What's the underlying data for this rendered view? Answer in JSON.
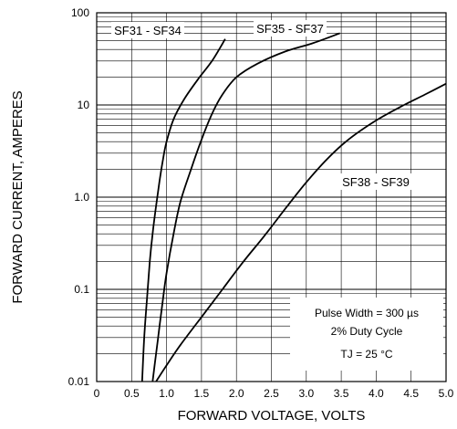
{
  "chart_data": {
    "type": "line",
    "xlabel": "FORWARD VOLTAGE, VOLTS",
    "ylabel": "FORWARD CURRENT, AMPERES",
    "xlim": [
      0,
      5.0
    ],
    "ylim": [
      0.01,
      100
    ],
    "yscale": "log",
    "grid": true,
    "x_ticks": [
      "0",
      "0.5",
      "1.0",
      "1.5",
      "2.0",
      "2.5",
      "3.0",
      "3.5",
      "4.0",
      "4.5",
      "5.0"
    ],
    "y_ticks": [
      "100",
      "10",
      "1.0",
      "0.1",
      "0.01"
    ],
    "series": [
      {
        "name": "SF31 - SF34",
        "x": [
          0.65,
          0.68,
          0.72,
          0.76,
          0.8,
          0.85,
          0.9,
          0.95,
          1.0,
          1.1,
          1.25,
          1.45,
          1.65,
          1.84
        ],
        "y": [
          0.01,
          0.03,
          0.08,
          0.2,
          0.4,
          0.8,
          1.5,
          2.6,
          4.0,
          7.0,
          11.5,
          19,
          30,
          52
        ]
      },
      {
        "name": "SF35 - SF37",
        "x": [
          0.8,
          0.85,
          0.9,
          0.95,
          1.0,
          1.1,
          1.2,
          1.35,
          1.5,
          1.65,
          1.8,
          2.0,
          2.3,
          2.7,
          3.1,
          3.48
        ],
        "y": [
          0.01,
          0.02,
          0.04,
          0.08,
          0.15,
          0.4,
          0.9,
          2.0,
          4.2,
          8.0,
          13,
          20,
          28,
          38,
          47,
          60
        ]
      },
      {
        "name": "SF38 - SF39",
        "x": [
          0.85,
          1.0,
          1.2,
          1.5,
          1.8,
          2.1,
          2.4,
          2.7,
          3.0,
          3.3,
          3.6,
          4.0,
          4.4,
          4.7,
          5.0
        ],
        "y": [
          0.01,
          0.015,
          0.025,
          0.05,
          0.1,
          0.2,
          0.38,
          0.75,
          1.45,
          2.6,
          4.2,
          6.8,
          10,
          13,
          17
        ]
      }
    ],
    "series_labels": [
      {
        "text": "SF31 - SF34"
      },
      {
        "text": "SF35 - SF37"
      },
      {
        "text": "SF38 - SF39"
      }
    ],
    "annotations": {
      "line1": "Pulse Width = 300 µs",
      "line2": "2% Duty Cycle",
      "tj": "TJ = 25 °C"
    }
  }
}
